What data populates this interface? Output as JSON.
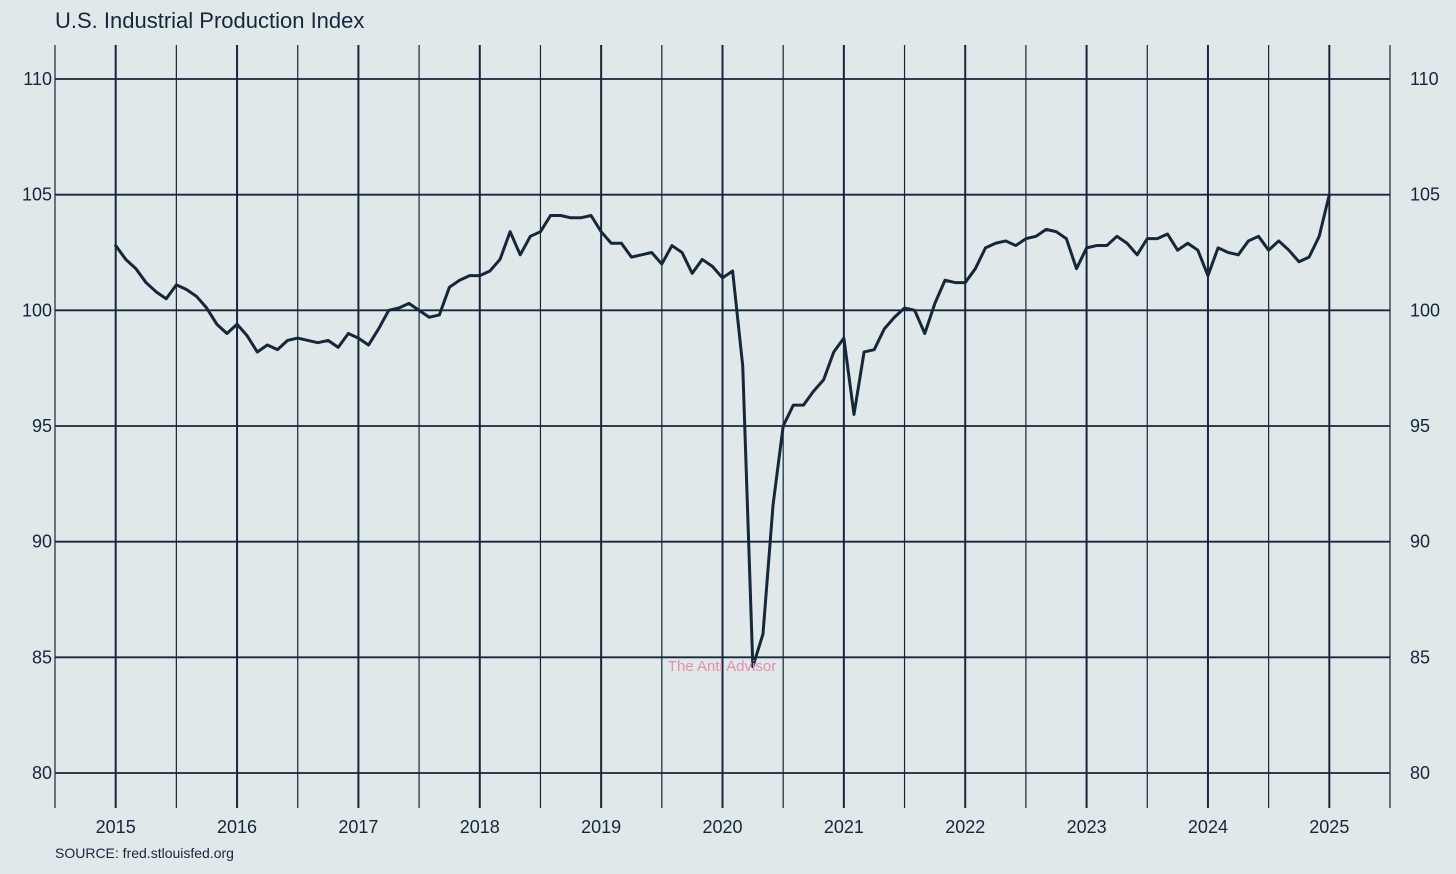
{
  "chart_data": {
    "type": "line",
    "title": "U.S. Industrial Production Index",
    "source": "SOURCE: fred.stlouisfed.org",
    "watermark": "The Anti Advisor",
    "colors": {
      "background": "#e0e8ea",
      "line": "#14283a",
      "grid": "#14283a",
      "watermark": "#e48fb0"
    },
    "grid": true,
    "xlabel": "",
    "ylabel": "",
    "ylim": [
      80,
      110
    ],
    "xlim": [
      2014.5,
      2025.5
    ],
    "y_ticks": [
      "80",
      "85",
      "90",
      "95",
      "100",
      "105",
      "110"
    ],
    "x_ticks": [
      "2015",
      "2016",
      "2017",
      "2018",
      "2019",
      "2020",
      "2021",
      "2022",
      "2023",
      "2024",
      "2025"
    ],
    "series": [
      {
        "start": "2015-01",
        "frequency": "monthly",
        "values": [
          102.8,
          102.2,
          101.8,
          101.2,
          100.8,
          100.5,
          101.1,
          100.9,
          100.6,
          100.1,
          99.4,
          99.0,
          99.4,
          98.9,
          98.2,
          98.5,
          98.3,
          98.7,
          98.8,
          98.7,
          98.6,
          98.7,
          98.4,
          99.0,
          98.8,
          98.5,
          99.2,
          100.0,
          100.1,
          100.3,
          100.0,
          99.7,
          99.8,
          101.0,
          101.3,
          101.5,
          101.5,
          101.7,
          102.2,
          103.4,
          102.4,
          103.2,
          103.4,
          104.1,
          104.1,
          104.0,
          104.0,
          104.1,
          103.4,
          102.9,
          102.9,
          102.3,
          102.4,
          102.5,
          102.0,
          102.8,
          102.5,
          101.6,
          102.2,
          101.9,
          101.4,
          101.7,
          97.6,
          84.6,
          86.0,
          91.6,
          95.0,
          95.9,
          95.9,
          96.5,
          97.0,
          98.2,
          98.8,
          95.5,
          98.2,
          98.3,
          99.2,
          99.7,
          100.1,
          100.0,
          99.0,
          100.3,
          101.3,
          101.2,
          101.2,
          101.8,
          102.7,
          102.9,
          103.0,
          102.8,
          103.1,
          103.2,
          103.5,
          103.4,
          103.1,
          101.8,
          102.7,
          102.8,
          102.8,
          103.2,
          102.9,
          102.4,
          103.1,
          103.1,
          103.3,
          102.6,
          102.9,
          102.6,
          101.5,
          102.7,
          102.5,
          102.4,
          103.0,
          103.2,
          102.6,
          103.0,
          102.6,
          102.1,
          102.3,
          103.2,
          105.0
        ]
      }
    ]
  }
}
